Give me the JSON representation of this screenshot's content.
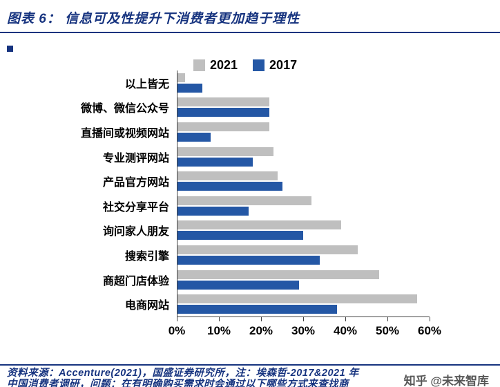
{
  "header": {
    "title": "图表 6：  信息可及性提升下消费者更加趋于理性"
  },
  "footer": {
    "line1": "资料来源：Accenture(2021)，国盛证券研究所，注：埃森哲-2017&2021 年",
    "line2": "中国消费者调研，问题：在有明确购买需求时会通过以下哪些方式来查找商"
  },
  "watermark": "知乎 @未来智库",
  "colors": {
    "accent_navy": "#16337F",
    "bar_gray": "#BFBFBF",
    "bar_blue": "#2457A5",
    "axis": "#404040"
  },
  "chart_data": {
    "type": "bar",
    "orientation": "horizontal",
    "order": "top-to-bottom",
    "title": "信息可及性提升下消费者更加趋于理性",
    "categories": [
      "以上皆无",
      "微博、微信公众号",
      "直播间或视频网站",
      "专业测评网站",
      "产品官方网站",
      "社交分享平台",
      "询问家人朋友",
      "搜索引擎",
      "商超门店体验",
      "电商网站"
    ],
    "series": [
      {
        "name": "2021",
        "color": "#BFBFBF",
        "values": [
          2,
          22,
          22,
          23,
          24,
          32,
          39,
          43,
          48,
          57
        ]
      },
      {
        "name": "2017",
        "color": "#2457A5",
        "values": [
          6,
          22,
          8,
          18,
          25,
          17,
          30,
          34,
          29,
          38
        ]
      }
    ],
    "xlim": [
      0,
      60
    ],
    "xticks": [
      "0%",
      "10%",
      "20%",
      "30%",
      "40%",
      "50%",
      "60%"
    ],
    "unit": "percent",
    "grid": false,
    "legend_position": "top"
  }
}
